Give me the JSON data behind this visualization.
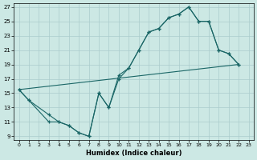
{
  "xlabel": "Humidex (Indice chaleur)",
  "background_color": "#cce8e4",
  "grid_color": "#aacccc",
  "line_color": "#1a6666",
  "xlim": [
    -0.5,
    23.5
  ],
  "ylim": [
    8.5,
    27.5
  ],
  "xticks": [
    0,
    1,
    2,
    3,
    4,
    5,
    6,
    7,
    8,
    9,
    10,
    11,
    12,
    13,
    14,
    15,
    16,
    17,
    18,
    19,
    20,
    21,
    22,
    23
  ],
  "yticks": [
    9,
    11,
    13,
    15,
    17,
    19,
    21,
    23,
    25,
    27
  ],
  "line1_x": [
    0,
    1,
    3,
    4,
    5,
    6,
    7,
    8,
    9,
    10,
    11,
    12,
    13,
    14,
    15,
    16,
    17,
    18,
    19,
    20,
    21,
    22
  ],
  "line1_y": [
    15.5,
    14.0,
    12.0,
    11.0,
    10.5,
    9.5,
    9.0,
    15.0,
    13.0,
    17.5,
    18.5,
    21.0,
    23.5,
    24.0,
    25.5,
    26.0,
    27.0,
    25.0,
    25.0,
    21.0,
    20.5,
    19.0
  ],
  "line2_x": [
    0,
    1,
    3,
    4,
    5,
    6,
    7,
    8,
    9,
    10,
    11,
    12,
    13,
    14,
    15,
    16,
    17,
    18,
    19,
    20,
    21,
    22
  ],
  "line2_y": [
    15.5,
    14.0,
    11.0,
    11.0,
    10.5,
    9.5,
    9.0,
    15.0,
    13.0,
    17.0,
    18.5,
    21.0,
    23.5,
    24.0,
    25.5,
    26.0,
    27.0,
    25.0,
    25.0,
    21.0,
    20.5,
    19.0
  ],
  "line3_x": [
    0,
    22
  ],
  "line3_y": [
    15.5,
    19.0
  ]
}
